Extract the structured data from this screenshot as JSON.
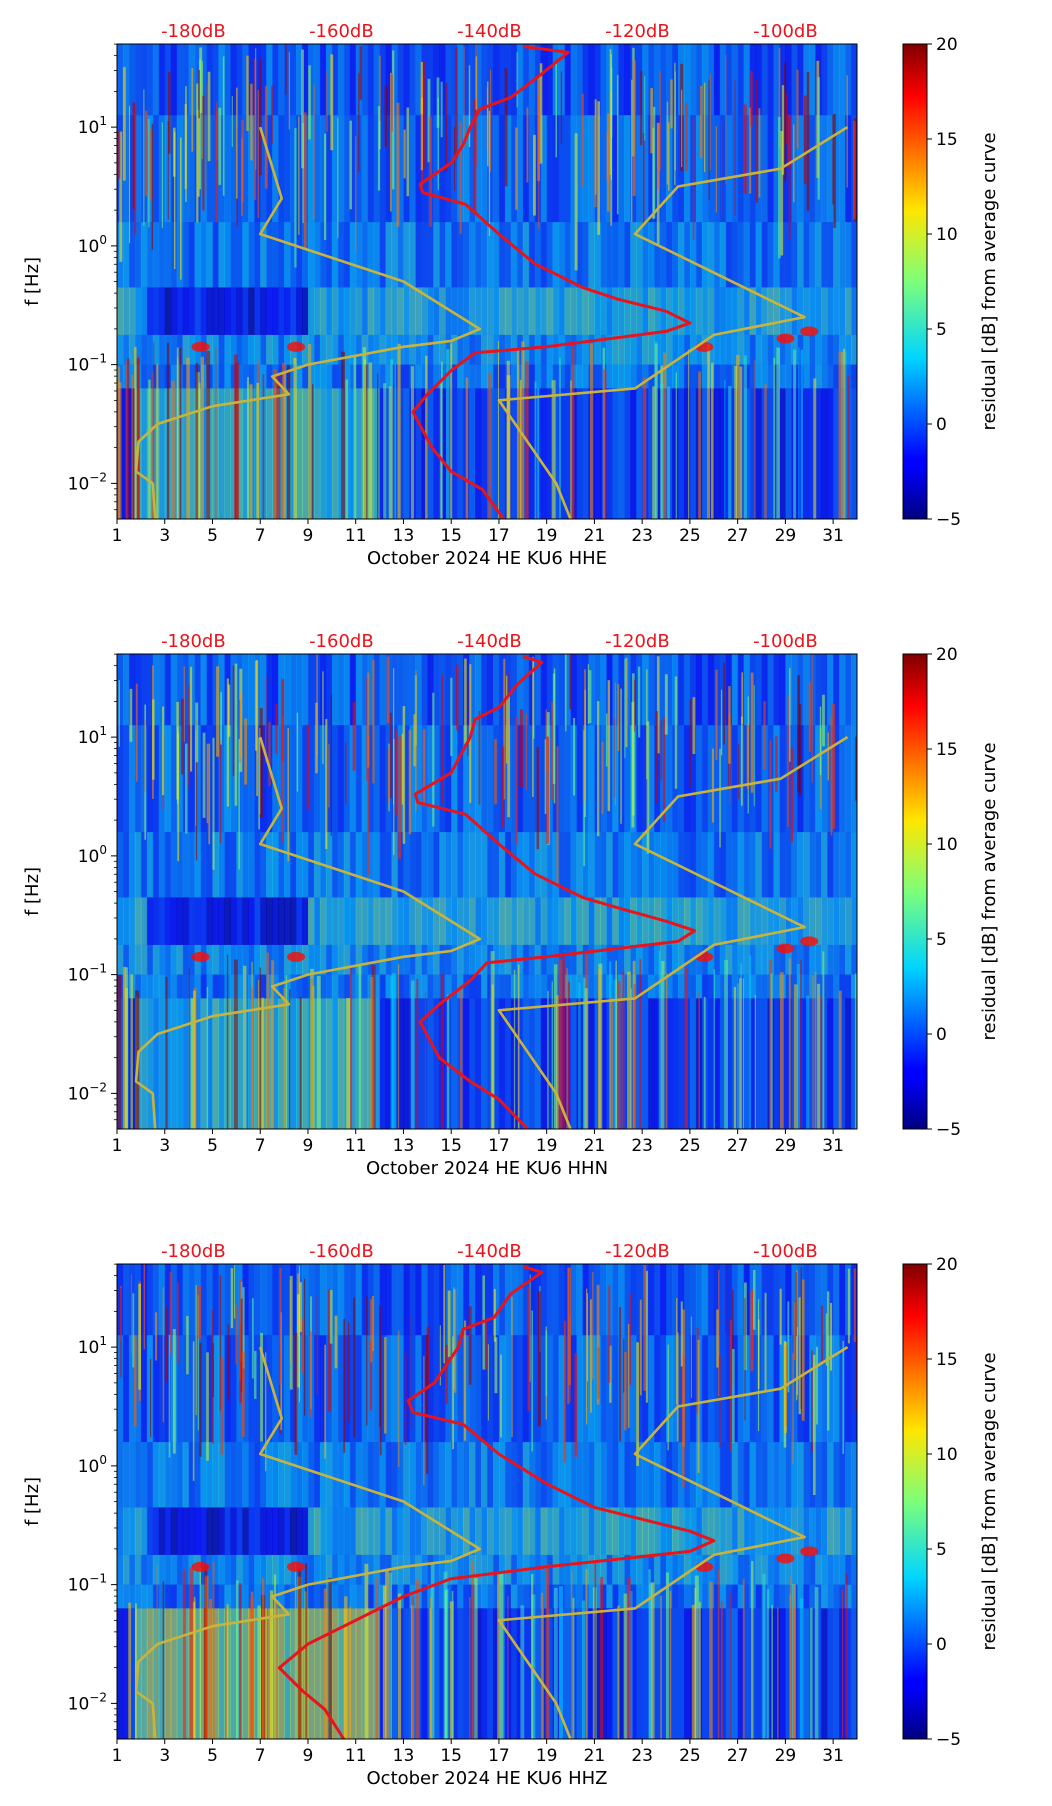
{
  "colorbar": {
    "label": "residual [dB] from average curve",
    "range": [
      -5,
      20
    ],
    "ticks": [
      20,
      15,
      10,
      5,
      0,
      -5
    ],
    "tick_labels": [
      "20",
      "15",
      "10",
      "5",
      "0",
      "−5"
    ]
  },
  "colors": {
    "red_curve": "#e8141c",
    "model_curve": "#c8b43c",
    "top_label": "#e8141c",
    "background_field": "#1b3fd9"
  },
  "chart_data": [
    {
      "type": "heatmap",
      "title": "",
      "xlabel": "October 2024 HE KU6  HHE",
      "ylabel": "f [Hz]",
      "xlim": [
        1,
        32
      ],
      "ylim_log10": [
        -2.3,
        1.7
      ],
      "x_ticks": [
        1,
        3,
        5,
        7,
        9,
        11,
        13,
        15,
        17,
        19,
        21,
        23,
        25,
        27,
        29,
        31
      ],
      "y_ticks": [
        {
          "exp": "−2",
          "log": -2
        },
        {
          "exp": "−1",
          "log": -1
        },
        {
          "exp": "0",
          "log": 0
        },
        {
          "exp": "1",
          "log": 1
        }
      ],
      "top_axis_labels": [
        "-180dB",
        "-160dB",
        "-140dB",
        "-120dB",
        "-100dB"
      ],
      "top_axis_positions_day": [
        4.2,
        10.4,
        16.6,
        22.8,
        29.0
      ],
      "series": [
        {
          "name": "average PSD (top dB scale)",
          "color": "red",
          "points": [
            [
              18.0,
              1.68
            ],
            [
              19.9,
              1.63
            ],
            [
              18.8,
              1.45
            ],
            [
              17.5,
              1.25
            ],
            [
              16.2,
              1.15
            ],
            [
              15.8,
              1.0
            ],
            [
              15.5,
              0.85
            ],
            [
              15.0,
              0.7
            ],
            [
              13.7,
              0.52
            ],
            [
              13.8,
              0.45
            ],
            [
              15.6,
              0.35
            ],
            [
              17.0,
              0.1
            ],
            [
              18.5,
              -0.15
            ],
            [
              20.5,
              -0.35
            ],
            [
              22.0,
              -0.45
            ],
            [
              24.0,
              -0.55
            ],
            [
              25.0,
              -0.65
            ],
            [
              24.0,
              -0.72
            ],
            [
              19.0,
              -0.85
            ],
            [
              16.0,
              -0.9
            ],
            [
              15.0,
              -1.05
            ],
            [
              14.0,
              -1.25
            ],
            [
              13.4,
              -1.4
            ],
            [
              14.2,
              -1.7
            ],
            [
              15.0,
              -1.9
            ],
            [
              16.3,
              -2.05
            ],
            [
              17.2,
              -2.3
            ]
          ]
        },
        {
          "name": "Peterson NLNM",
          "color": "model",
          "points": [
            [
              7.0,
              1.0
            ],
            [
              7.9,
              0.4
            ],
            [
              7.0,
              0.1
            ],
            [
              13.0,
              -0.3
            ],
            [
              16.2,
              -0.7
            ],
            [
              15.0,
              -0.8
            ],
            [
              13.0,
              -0.85
            ],
            [
              9.0,
              -1.0
            ],
            [
              7.5,
              -1.1
            ],
            [
              8.2,
              -1.25
            ],
            [
              5.0,
              -1.35
            ],
            [
              2.7,
              -1.5
            ],
            [
              1.9,
              -1.65
            ],
            [
              1.8,
              -1.9
            ],
            [
              2.5,
              -2.0
            ],
            [
              2.6,
              -2.3
            ]
          ]
        },
        {
          "name": "Peterson NHNM",
          "color": "model",
          "points": [
            [
              31.6,
              1.0
            ],
            [
              28.8,
              0.65
            ],
            [
              24.5,
              0.5
            ],
            [
              22.7,
              0.1
            ],
            [
              29.8,
              -0.6
            ],
            [
              26.0,
              -0.75
            ],
            [
              22.7,
              -1.2
            ],
            [
              17.0,
              -1.3
            ],
            [
              19.4,
              -2.0
            ],
            [
              20.0,
              -2.3
            ]
          ]
        }
      ]
    },
    {
      "type": "heatmap",
      "title": "",
      "xlabel": "October 2024 HE KU6  HHN",
      "ylabel": "f [Hz]",
      "xlim": [
        1,
        32
      ],
      "ylim_log10": [
        -2.3,
        1.7
      ],
      "x_ticks": [
        1,
        3,
        5,
        7,
        9,
        11,
        13,
        15,
        17,
        19,
        21,
        23,
        25,
        27,
        29,
        31
      ],
      "y_ticks": [
        {
          "exp": "−2",
          "log": -2
        },
        {
          "exp": "−1",
          "log": -1
        },
        {
          "exp": "0",
          "log": 0
        },
        {
          "exp": "1",
          "log": 1
        }
      ],
      "top_axis_labels": [
        "-180dB",
        "-160dB",
        "-140dB",
        "-120dB",
        "-100dB"
      ],
      "top_axis_positions_day": [
        4.2,
        10.4,
        16.6,
        22.8,
        29.0
      ],
      "series": [
        {
          "name": "average PSD (top dB scale)",
          "color": "red",
          "points": [
            [
              18.0,
              1.68
            ],
            [
              18.8,
              1.63
            ],
            [
              17.8,
              1.45
            ],
            [
              17.0,
              1.25
            ],
            [
              16.0,
              1.15
            ],
            [
              15.8,
              1.0
            ],
            [
              15.4,
              0.85
            ],
            [
              15.0,
              0.7
            ],
            [
              13.5,
              0.52
            ],
            [
              13.6,
              0.45
            ],
            [
              15.6,
              0.35
            ],
            [
              17.0,
              0.1
            ],
            [
              18.5,
              -0.15
            ],
            [
              20.5,
              -0.35
            ],
            [
              22.2,
              -0.45
            ],
            [
              24.0,
              -0.55
            ],
            [
              25.2,
              -0.63
            ],
            [
              24.5,
              -0.72
            ],
            [
              19.0,
              -0.85
            ],
            [
              16.5,
              -0.9
            ],
            [
              15.8,
              -1.05
            ],
            [
              14.5,
              -1.25
            ],
            [
              13.7,
              -1.4
            ],
            [
              14.5,
              -1.7
            ],
            [
              15.8,
              -1.9
            ],
            [
              17.0,
              -2.05
            ],
            [
              18.2,
              -2.3
            ]
          ]
        },
        {
          "name": "Peterson NLNM",
          "color": "model",
          "points": [
            [
              7.0,
              1.0
            ],
            [
              7.9,
              0.4
            ],
            [
              7.0,
              0.1
            ],
            [
              13.0,
              -0.3
            ],
            [
              16.2,
              -0.7
            ],
            [
              15.0,
              -0.8
            ],
            [
              13.0,
              -0.85
            ],
            [
              9.0,
              -1.0
            ],
            [
              7.5,
              -1.1
            ],
            [
              8.2,
              -1.25
            ],
            [
              5.0,
              -1.35
            ],
            [
              2.7,
              -1.5
            ],
            [
              1.9,
              -1.65
            ],
            [
              1.8,
              -1.9
            ],
            [
              2.5,
              -2.0
            ],
            [
              2.6,
              -2.3
            ]
          ]
        },
        {
          "name": "Peterson NHNM",
          "color": "model",
          "points": [
            [
              31.6,
              1.0
            ],
            [
              28.8,
              0.65
            ],
            [
              24.5,
              0.5
            ],
            [
              22.7,
              0.1
            ],
            [
              29.8,
              -0.6
            ],
            [
              26.0,
              -0.75
            ],
            [
              22.7,
              -1.2
            ],
            [
              17.0,
              -1.3
            ],
            [
              19.4,
              -2.0
            ],
            [
              20.0,
              -2.3
            ]
          ]
        }
      ]
    },
    {
      "type": "heatmap",
      "title": "",
      "xlabel": "October 2024 HE KU6  HHZ",
      "ylabel": "f [Hz]",
      "xlim": [
        1,
        32
      ],
      "ylim_log10": [
        -2.3,
        1.7
      ],
      "x_ticks": [
        1,
        3,
        5,
        7,
        9,
        11,
        13,
        15,
        17,
        19,
        21,
        23,
        25,
        27,
        29,
        31
      ],
      "y_ticks": [
        {
          "exp": "−2",
          "log": -2
        },
        {
          "exp": "−1",
          "log": -1
        },
        {
          "exp": "0",
          "log": 0
        },
        {
          "exp": "1",
          "log": 1
        }
      ],
      "top_axis_labels": [
        "-180dB",
        "-160dB",
        "-140dB",
        "-120dB",
        "-100dB"
      ],
      "top_axis_positions_day": [
        4.2,
        10.4,
        16.6,
        22.8,
        29.0
      ],
      "series": [
        {
          "name": "average PSD (top dB scale)",
          "color": "red",
          "points": [
            [
              18.0,
              1.68
            ],
            [
              18.8,
              1.63
            ],
            [
              17.5,
              1.45
            ],
            [
              16.8,
              1.25
            ],
            [
              15.5,
              1.15
            ],
            [
              15.3,
              1.0
            ],
            [
              14.8,
              0.85
            ],
            [
              14.3,
              0.7
            ],
            [
              13.2,
              0.55
            ],
            [
              13.4,
              0.45
            ],
            [
              15.5,
              0.35
            ],
            [
              17.0,
              0.1
            ],
            [
              19.0,
              -0.15
            ],
            [
              21.0,
              -0.35
            ],
            [
              23.0,
              -0.45
            ],
            [
              25.0,
              -0.55
            ],
            [
              26.0,
              -0.63
            ],
            [
              25.0,
              -0.72
            ],
            [
              19.0,
              -0.85
            ],
            [
              15.0,
              -0.95
            ],
            [
              13.0,
              -1.1
            ],
            [
              11.0,
              -1.3
            ],
            [
              9.0,
              -1.5
            ],
            [
              7.8,
              -1.7
            ],
            [
              8.8,
              -1.9
            ],
            [
              9.7,
              -2.05
            ],
            [
              10.5,
              -2.3
            ]
          ]
        },
        {
          "name": "Peterson NLNM",
          "color": "model",
          "points": [
            [
              7.0,
              1.0
            ],
            [
              7.9,
              0.4
            ],
            [
              7.0,
              0.1
            ],
            [
              13.0,
              -0.3
            ],
            [
              16.2,
              -0.7
            ],
            [
              15.0,
              -0.8
            ],
            [
              13.0,
              -0.85
            ],
            [
              9.0,
              -1.0
            ],
            [
              7.5,
              -1.1
            ],
            [
              8.2,
              -1.25
            ],
            [
              5.0,
              -1.35
            ],
            [
              2.7,
              -1.5
            ],
            [
              1.9,
              -1.65
            ],
            [
              1.8,
              -1.9
            ],
            [
              2.5,
              -2.0
            ],
            [
              2.6,
              -2.3
            ]
          ]
        },
        {
          "name": "Peterson NHNM",
          "color": "model",
          "points": [
            [
              31.6,
              1.0
            ],
            [
              28.8,
              0.65
            ],
            [
              24.5,
              0.5
            ],
            [
              22.7,
              0.1
            ],
            [
              29.8,
              -0.6
            ],
            [
              26.0,
              -0.75
            ],
            [
              22.7,
              -1.2
            ],
            [
              17.0,
              -1.3
            ],
            [
              19.4,
              -2.0
            ],
            [
              20.0,
              -2.3
            ]
          ]
        }
      ]
    }
  ]
}
